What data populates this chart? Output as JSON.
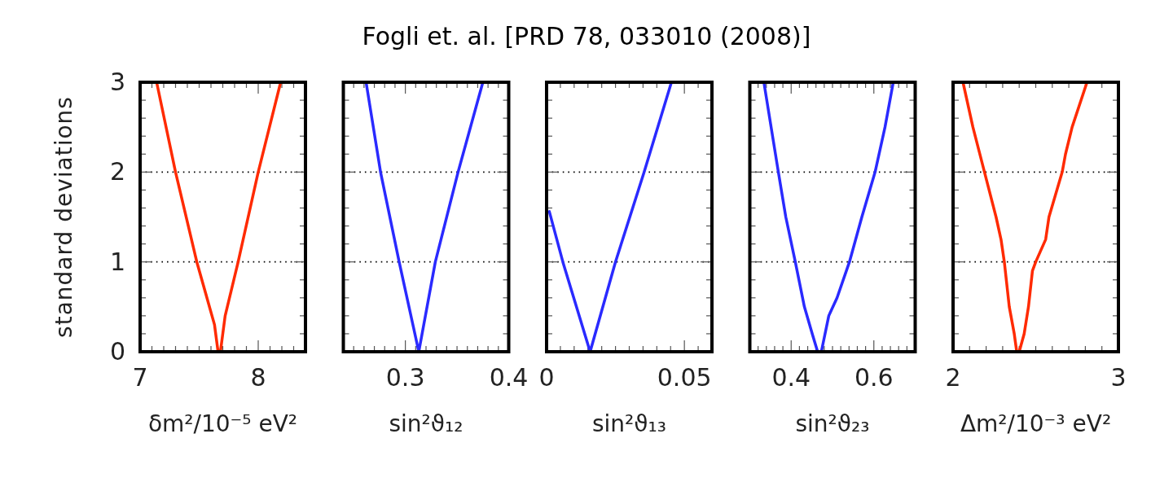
{
  "chart_data": [
    {
      "type": "line",
      "xlabel": "δm²/10⁻⁵ eV²",
      "ylabel": "standard deviations",
      "xlim": [
        7,
        8.4
      ],
      "ylim": [
        0,
        3
      ],
      "grid": "y",
      "xticks": [
        7,
        {
          "value": 7.1,
          "label": null
        },
        {
          "value": 7.2,
          "label": null
        },
        {
          "value": 7.3,
          "label": null
        },
        {
          "value": 7.4,
          "label": null
        },
        {
          "value": 7.5,
          "label": null
        },
        {
          "value": 7.6,
          "label": null
        },
        {
          "value": 7.7,
          "label": null
        },
        {
          "value": 7.8,
          "label": null
        },
        {
          "value": 7.9,
          "label": null
        },
        8,
        {
          "value": 8.1,
          "label": null
        },
        {
          "value": 8.2,
          "label": null
        },
        {
          "value": 8.3,
          "label": null
        }
      ],
      "yticks": [
        0,
        {
          "value": 0.2,
          "label": null
        },
        {
          "value": 0.4,
          "label": null
        },
        {
          "value": 0.6,
          "label": null
        },
        {
          "value": 0.8,
          "label": null
        },
        1,
        {
          "value": 1.2,
          "label": null
        },
        {
          "value": 1.4,
          "label": null
        },
        {
          "value": 1.6,
          "label": null
        },
        {
          "value": 1.8,
          "label": null
        },
        2,
        {
          "value": 2.2,
          "label": null
        },
        {
          "value": 2.4,
          "label": null
        },
        {
          "value": 2.6,
          "label": null
        },
        {
          "value": 2.8,
          "label": null
        },
        3
      ],
      "series": [
        {
          "color": "#ff2a00",
          "x": [
            7.14,
            7.3,
            7.48,
            7.63,
            7.66,
            7.68,
            7.72,
            7.83,
            8.0,
            8.19
          ],
          "values": [
            3,
            2,
            1,
            0.3,
            0,
            0,
            0.4,
            1,
            2,
            3
          ]
        }
      ]
    },
    {
      "type": "line",
      "xlabel": "sin²ϑ₁₂",
      "xlim": [
        0.24,
        0.4
      ],
      "ylim": [
        0,
        3
      ],
      "grid": "y",
      "tick_labels": "x",
      "xticks": [
        {
          "value": 0.25,
          "label": null
        },
        {
          "value": 0.26,
          "label": null
        },
        {
          "value": 0.27,
          "label": null
        },
        {
          "value": 0.28,
          "label": null
        },
        {
          "value": 0.29,
          "label": null
        },
        0.3,
        {
          "value": 0.31,
          "label": null
        },
        {
          "value": 0.32,
          "label": null
        },
        {
          "value": 0.33,
          "label": null
        },
        {
          "value": 0.34,
          "label": null
        },
        {
          "value": 0.35,
          "label": null
        },
        {
          "value": 0.36,
          "label": null
        },
        {
          "value": 0.37,
          "label": null
        },
        {
          "value": 0.38,
          "label": null
        },
        {
          "value": 0.39,
          "label": null
        },
        0.4
      ],
      "yticks": [
        0,
        {
          "value": 0.2,
          "label": null
        },
        {
          "value": 0.4,
          "label": null
        },
        {
          "value": 0.6,
          "label": null
        },
        {
          "value": 0.8,
          "label": null
        },
        1,
        {
          "value": 1.2,
          "label": null
        },
        {
          "value": 1.4,
          "label": null
        },
        {
          "value": 1.6,
          "label": null
        },
        {
          "value": 1.8,
          "label": null
        },
        2,
        {
          "value": 2.2,
          "label": null
        },
        {
          "value": 2.4,
          "label": null
        },
        {
          "value": 2.6,
          "label": null
        },
        {
          "value": 2.8,
          "label": null
        },
        3
      ],
      "series": [
        {
          "color": "#2a2aff",
          "x": [
            0.262,
            0.276,
            0.294,
            0.313,
            0.329,
            0.351,
            0.375
          ],
          "values": [
            3,
            2,
            1,
            0,
            1,
            2,
            3
          ]
        }
      ]
    },
    {
      "type": "line",
      "title": "Fogli et. al. [PRD 78, 033010 (2008)]",
      "xlabel": "sin²ϑ₁₃",
      "xlim": [
        0,
        0.06
      ],
      "ylim": [
        0,
        3
      ],
      "grid": "y",
      "tick_labels": "x",
      "xticks": [
        0,
        {
          "value": 0.005,
          "label": null
        },
        {
          "value": 0.01,
          "label": null
        },
        {
          "value": 0.015,
          "label": null
        },
        {
          "value": 0.02,
          "label": null
        },
        {
          "value": 0.025,
          "label": null
        },
        {
          "value": 0.03,
          "label": null
        },
        {
          "value": 0.035,
          "label": null
        },
        {
          "value": 0.04,
          "label": null
        },
        {
          "value": 0.045,
          "label": null
        },
        0.05,
        {
          "value": 0.055,
          "label": null
        }
      ],
      "yticks": [
        0,
        {
          "value": 0.2,
          "label": null
        },
        {
          "value": 0.4,
          "label": null
        },
        {
          "value": 0.6,
          "label": null
        },
        {
          "value": 0.8,
          "label": null
        },
        1,
        {
          "value": 1.2,
          "label": null
        },
        {
          "value": 1.4,
          "label": null
        },
        {
          "value": 1.6,
          "label": null
        },
        {
          "value": 1.8,
          "label": null
        },
        2,
        {
          "value": 2.2,
          "label": null
        },
        {
          "value": 2.4,
          "label": null
        },
        {
          "value": 2.6,
          "label": null
        },
        {
          "value": 2.8,
          "label": null
        },
        3
      ],
      "series": [
        {
          "color": "#2a2aff",
          "x": [
            0.001,
            0.0059,
            0.0158,
            0.025,
            0.0354,
            0.0453
          ],
          "values": [
            1.56,
            1,
            0,
            1,
            2,
            3
          ]
        }
      ]
    },
    {
      "type": "line",
      "xlabel": "sin²ϑ₂₃",
      "xlim": [
        0.3,
        0.7
      ],
      "ylim": [
        0,
        3
      ],
      "grid": "y",
      "tick_labels": "x",
      "xticks": [
        {
          "value": 0.32,
          "label": null
        },
        {
          "value": 0.34,
          "label": null
        },
        {
          "value": 0.36,
          "label": null
        },
        {
          "value": 0.38,
          "label": null
        },
        0.4,
        {
          "value": 0.42,
          "label": null
        },
        {
          "value": 0.44,
          "label": null
        },
        {
          "value": 0.46,
          "label": null
        },
        {
          "value": 0.48,
          "label": null
        },
        {
          "value": 0.5,
          "label": null
        },
        {
          "value": 0.52,
          "label": null
        },
        {
          "value": 0.54,
          "label": null
        },
        {
          "value": 0.56,
          "label": null
        },
        {
          "value": 0.58,
          "label": null
        },
        0.6,
        {
          "value": 0.62,
          "label": null
        },
        {
          "value": 0.64,
          "label": null
        },
        {
          "value": 0.66,
          "label": null
        },
        {
          "value": 0.68,
          "label": null
        }
      ],
      "yticks": [
        0,
        {
          "value": 0.2,
          "label": null
        },
        {
          "value": 0.4,
          "label": null
        },
        {
          "value": 0.6,
          "label": null
        },
        {
          "value": 0.8,
          "label": null
        },
        1,
        {
          "value": 1.2,
          "label": null
        },
        {
          "value": 1.4,
          "label": null
        },
        {
          "value": 1.6,
          "label": null
        },
        {
          "value": 1.8,
          "label": null
        },
        2,
        {
          "value": 2.2,
          "label": null
        },
        {
          "value": 2.4,
          "label": null
        },
        {
          "value": 2.6,
          "label": null
        },
        {
          "value": 2.8,
          "label": null
        },
        3
      ],
      "series": [
        {
          "color": "#2a2aff",
          "x": [
            0.334,
            0.369,
            0.387,
            0.41,
            0.432,
            0.451,
            0.464,
            0.473,
            0.491,
            0.511,
            0.541,
            0.571,
            0.603,
            0.627,
            0.647
          ],
          "values": [
            3,
            2,
            1.5,
            1,
            0.5,
            0.2,
            0,
            0,
            0.4,
            0.6,
            1,
            1.5,
            2,
            2.5,
            3
          ]
        }
      ]
    },
    {
      "type": "line",
      "xlabel": "Δm²/10⁻³ eV²",
      "xlim": [
        2,
        3
      ],
      "ylim": [
        0,
        3
      ],
      "grid": "y",
      "tick_labels": "x",
      "xticks": [
        2,
        {
          "value": 2.1,
          "label": null
        },
        {
          "value": 2.2,
          "label": null
        },
        {
          "value": 2.3,
          "label": null
        },
        {
          "value": 2.4,
          "label": null
        },
        {
          "value": 2.5,
          "label": null
        },
        {
          "value": 2.6,
          "label": null
        },
        {
          "value": 2.7,
          "label": null
        },
        {
          "value": 2.8,
          "label": null
        },
        {
          "value": 2.9,
          "label": null
        },
        3
      ],
      "yticks": [
        0,
        {
          "value": 0.2,
          "label": null
        },
        {
          "value": 0.4,
          "label": null
        },
        {
          "value": 0.6,
          "label": null
        },
        {
          "value": 0.8,
          "label": null
        },
        1,
        {
          "value": 1.2,
          "label": null
        },
        {
          "value": 1.4,
          "label": null
        },
        {
          "value": 1.6,
          "label": null
        },
        {
          "value": 1.8,
          "label": null
        },
        2,
        {
          "value": 2.2,
          "label": null
        },
        {
          "value": 2.4,
          "label": null
        },
        {
          "value": 2.6,
          "label": null
        },
        {
          "value": 2.8,
          "label": null
        },
        3
      ],
      "series": [
        {
          "color": "#ff2a00",
          "x": [
            2.06,
            2.12,
            2.19,
            2.26,
            2.29,
            2.31,
            2.34,
            2.37,
            2.385,
            2.4,
            2.43,
            2.456,
            2.48,
            2.5,
            2.56,
            2.58,
            2.66,
            2.68,
            2.72,
            2.81
          ],
          "values": [
            3,
            2.5,
            2,
            1.5,
            1.25,
            1,
            0.5,
            0.2,
            0,
            0,
            0.2,
            0.5,
            0.9,
            1,
            1.25,
            1.5,
            2,
            2.2,
            2.5,
            3
          ]
        }
      ]
    }
  ]
}
